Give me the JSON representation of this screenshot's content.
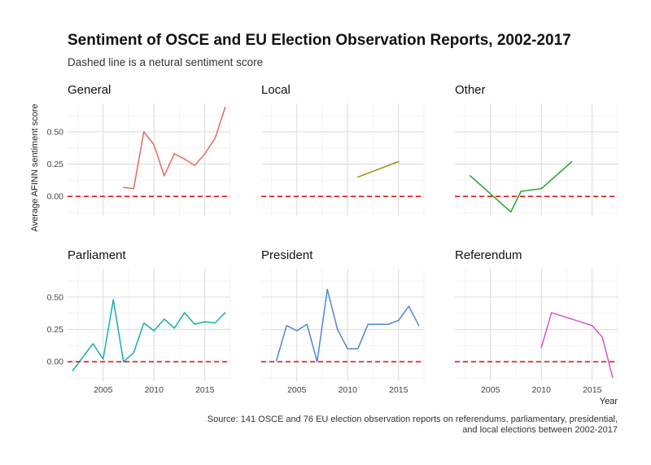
{
  "chart_data": {
    "type": "line",
    "title": "Sentiment of OSCE and EU Election Observation Reports, 2002-2017",
    "subtitle": "Dashed line is a netural sentiment score",
    "xlabel": "Year",
    "ylabel": "Average AFINN sentiment score",
    "caption_lines": [
      "Source: 141 OSCE and 76 EU election observation reports on referendums, parliamentary, presidential,",
      "and local elections between 2002-2017"
    ],
    "xlim": [
      2001.5,
      2017.5
    ],
    "ylim": [
      -0.15,
      0.72
    ],
    "x_ticks": [
      2005,
      2010,
      2015
    ],
    "x_tick_labels": [
      "2005",
      "2010",
      "2015"
    ],
    "y_ticks": [
      0,
      0.25,
      0.5
    ],
    "y_tick_labels": [
      "0.00",
      "0.25",
      "0.50"
    ],
    "reference_line": {
      "y": 0,
      "style": "dashed",
      "color": "#e41a1c"
    },
    "grid": true,
    "facets": [
      {
        "name": "General",
        "color": "#e06c62",
        "points": [
          [
            2007,
            0.07
          ],
          [
            2008,
            0.06
          ],
          [
            2009,
            0.5
          ],
          [
            2010,
            0.4
          ],
          [
            2011,
            0.16
          ],
          [
            2012,
            0.33
          ],
          [
            2013,
            0.29
          ],
          [
            2014,
            0.24
          ],
          [
            2015,
            0.33
          ],
          [
            2016,
            0.45
          ],
          [
            2017,
            0.69
          ]
        ]
      },
      {
        "name": "Local",
        "color": "#a6900c",
        "points": [
          [
            2011,
            0.15
          ],
          [
            2015,
            0.27
          ]
        ]
      },
      {
        "name": "Other",
        "color": "#2ca02c",
        "points": [
          [
            2003,
            0.16
          ],
          [
            2007,
            -0.12
          ],
          [
            2008,
            0.04
          ],
          [
            2010,
            0.06
          ],
          [
            2013,
            0.27
          ]
        ]
      },
      {
        "name": "Parliament",
        "color": "#1aafab",
        "points": [
          [
            2002,
            -0.07
          ],
          [
            2004,
            0.14
          ],
          [
            2005,
            0.02
          ],
          [
            2006,
            0.48
          ],
          [
            2007,
            0.0
          ],
          [
            2008,
            0.07
          ],
          [
            2009,
            0.3
          ],
          [
            2010,
            0.24
          ],
          [
            2011,
            0.33
          ],
          [
            2012,
            0.26
          ],
          [
            2013,
            0.38
          ],
          [
            2014,
            0.29
          ],
          [
            2015,
            0.31
          ],
          [
            2016,
            0.3
          ],
          [
            2017,
            0.38
          ]
        ]
      },
      {
        "name": "President",
        "color": "#4e86d9",
        "points": [
          [
            2003,
            0.01
          ],
          [
            2004,
            0.28
          ],
          [
            2005,
            0.24
          ],
          [
            2006,
            0.29
          ],
          [
            2007,
            0.0
          ],
          [
            2008,
            0.56
          ],
          [
            2009,
            0.25
          ],
          [
            2010,
            0.1
          ],
          [
            2011,
            0.1
          ],
          [
            2012,
            0.29
          ],
          [
            2014,
            0.29
          ],
          [
            2015,
            0.32
          ],
          [
            2016,
            0.43
          ],
          [
            2017,
            0.28
          ]
        ]
      },
      {
        "name": "Referendum",
        "color": "#d94fd1",
        "points": [
          [
            2010,
            0.11
          ],
          [
            2011,
            0.38
          ],
          [
            2015,
            0.28
          ],
          [
            2016,
            0.19
          ],
          [
            2017,
            -0.12
          ]
        ]
      }
    ]
  }
}
